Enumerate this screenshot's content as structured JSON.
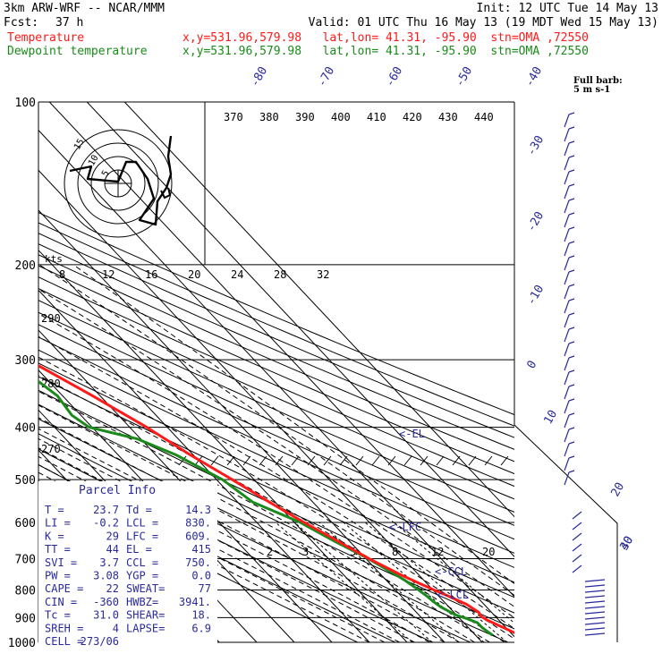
{
  "header": {
    "model": "3km ARW-WRF -- NCAR/MMM",
    "init": "Init: 12 UTC Tue 14 May 13",
    "fcst_label": "Fcst:",
    "fcst_value": "37 h",
    "valid": "Valid: 01 UTC Thu 16 May 13 (19 MDT Wed 15 May 13)",
    "temp_line": {
      "label": "Temperature",
      "loc": "x,y=531.96,579.98   lat,lon= 41.31, -95.90  stn=OMA ,72550"
    },
    "dew_line": {
      "label": "Dewpoint temperature",
      "loc": "x,y=531.96,579.98   lat,lon= 41.31, -95.90  stn=OMA ,72550"
    }
  },
  "colors": {
    "temperature": "#ff1a1a",
    "dewpoint": "#1a8a1a",
    "barbs": "#2a2a9a",
    "labels": "#2a2a9a",
    "grid": "#000000"
  },
  "barb_legend": {
    "line1": "Full barb:",
    "line2": "5 m s-1"
  },
  "parcel_info": {
    "title": "Parcel Info",
    "rows": [
      {
        "a": "T    =",
        "av": "23.7",
        "b": "Td  =",
        "bv": "14.3"
      },
      {
        "a": "LI   =",
        "av": "-0.2",
        "b": "LCL =",
        "bv": "830."
      },
      {
        "a": "K    =",
        "av": "29",
        "b": "LFC =",
        "bv": "609."
      },
      {
        "a": "TT   =",
        "av": "44",
        "b": "EL  =",
        "bv": "415"
      },
      {
        "a": "SVI  =",
        "av": "3.7",
        "b": "CCL =",
        "bv": "750."
      },
      {
        "a": "PW   =",
        "av": "3.08",
        "b": "YGP =",
        "bv": "0.0"
      },
      {
        "a": "CAPE =",
        "av": "22",
        "b": "SWEAT=",
        "bv": "77"
      },
      {
        "a": "CIN  =",
        "av": "-360",
        "b": "HWBZ=",
        "bv": "3941."
      },
      {
        "a": "Tc   =",
        "av": "31.0",
        "b": "SHEAR=",
        "bv": "18."
      },
      {
        "a": "SREH =",
        "av": "4",
        "b": "LAPSE=",
        "bv": "6.9"
      },
      {
        "a": "CELL =",
        "av": "273/06",
        "b": "",
        "bv": ""
      }
    ]
  },
  "hodograph": {
    "units_label": "kts",
    "ring_labels": [
      "5",
      "10",
      "15"
    ]
  },
  "chart_data": {
    "type": "line",
    "title": "",
    "ylabel": "",
    "pressure_levels": [
      100,
      200,
      300,
      400,
      500,
      600,
      700,
      800,
      900,
      1000
    ],
    "isotherm_labels": [
      "-80",
      "-70",
      "-60",
      "-50",
      "-40",
      "-30",
      "-20",
      "-10",
      "0",
      "10",
      "20",
      "30",
      "40"
    ],
    "theta_labels": [
      "370",
      "380",
      "390",
      "400",
      "410",
      "420",
      "430",
      "440"
    ],
    "theta_left_labels": [
      "290",
      "280",
      "270"
    ],
    "mixing_upper_labels": [
      "8",
      "12",
      "16",
      "20",
      "24",
      "28",
      "32"
    ],
    "mixing_lower_labels": [
      "2",
      "3",
      "5",
      "8",
      "12",
      "20"
    ],
    "parcel_markers": [
      "LCL",
      "CCL",
      "LFC",
      "EL"
    ],
    "series": [
      {
        "name": "Temperature",
        "p": [
          990,
          960,
          930,
          910,
          895,
          880,
          850,
          820,
          800,
          780,
          750,
          700,
          650,
          600,
          550,
          500,
          450,
          400,
          350,
          300,
          250,
          215,
          200,
          185,
          170,
          160,
          150,
          140,
          130,
          120,
          110,
          100
        ],
        "t": [
          24.5,
          21.0,
          18.6,
          16.9,
          16.2,
          16.6,
          15.3,
          12.4,
          10.3,
          8.2,
          5.2,
          0.8,
          -3.1,
          -7.4,
          -11.6,
          -15.8,
          -20.8,
          -25.5,
          -32.0,
          -40.2,
          -48.6,
          -55.2,
          -57.8,
          -59.4,
          -59.6,
          -58.6,
          -58.0,
          -58.8,
          -58.3,
          -57.5,
          -59.2,
          -61.0
        ]
      },
      {
        "name": "Dewpoint temperature",
        "p": [
          970,
          940,
          920,
          905,
          890,
          860,
          840,
          820,
          800,
          770,
          750,
          700,
          650,
          600,
          550,
          500,
          450,
          420,
          400,
          380,
          350,
          300,
          250,
          200,
          170,
          160,
          150,
          140,
          130,
          120,
          110,
          100
        ],
        "td": [
          14.5,
          13.7,
          13.6,
          12.0,
          9.8,
          7.8,
          7.2,
          6.8,
          6.2,
          5.0,
          3.9,
          0.6,
          -4.0,
          -8.4,
          -16.0,
          -18.4,
          -24.6,
          -31.0,
          -40.8,
          -42.4,
          -41.4,
          -45.0,
          -51.0,
          -63.0,
          -68.0,
          -70.0,
          -73.0,
          -72.0,
          -76.0,
          -77.0,
          -80.0,
          -81.0
        ]
      }
    ]
  }
}
